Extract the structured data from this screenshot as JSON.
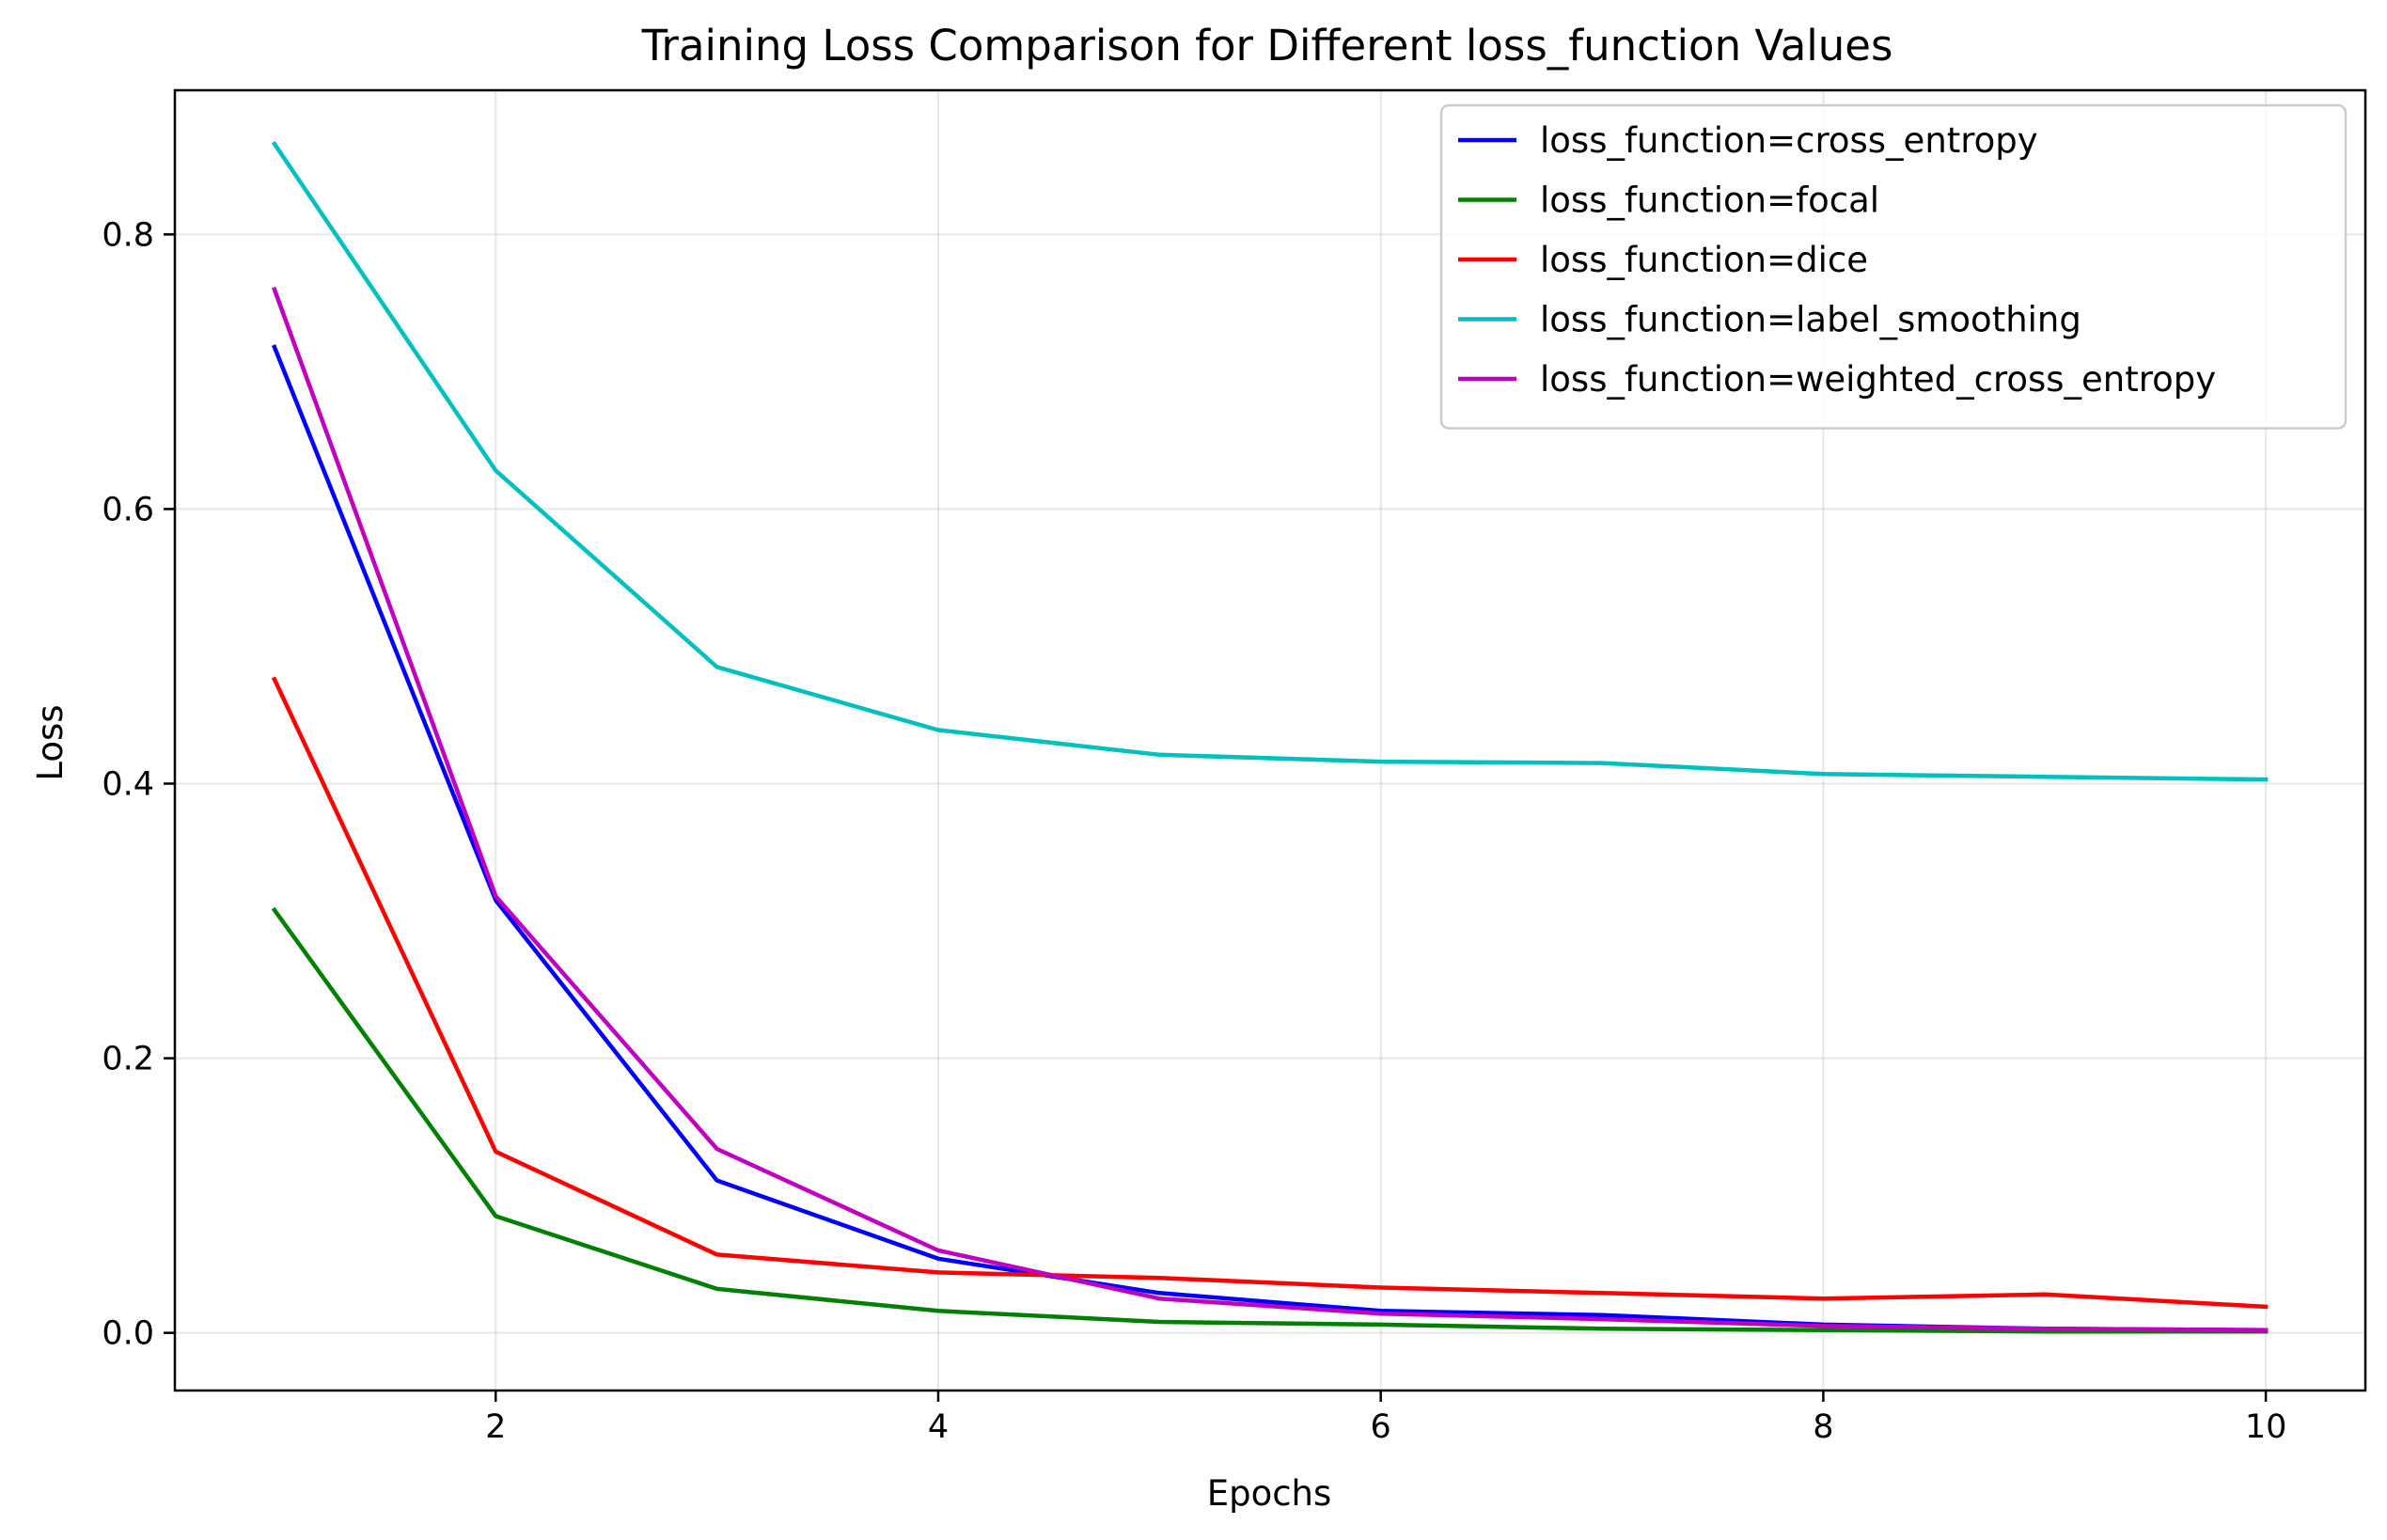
{
  "chart_data": {
    "type": "line",
    "title": "Training Loss Comparison for Different loss_function Values",
    "xlabel": "Epochs",
    "ylabel": "Loss",
    "xlim": [
      0.55,
      10.45
    ],
    "ylim": [
      -0.042,
      0.905
    ],
    "xticks": [
      2,
      4,
      6,
      8,
      10
    ],
    "yticks": [
      0.0,
      0.2,
      0.4,
      0.6,
      0.8
    ],
    "xtick_labels": [
      "2",
      "4",
      "6",
      "8",
      "10"
    ],
    "ytick_labels": [
      "0.0",
      "0.2",
      "0.4",
      "0.6",
      "0.8"
    ],
    "grid": true,
    "legend_position": "upper right",
    "x": [
      1,
      2,
      3,
      4,
      5,
      6,
      7,
      8,
      9,
      10
    ],
    "series": [
      {
        "name": "loss_function=cross_entropy",
        "color": "#0000ff",
        "values": [
          0.718,
          0.315,
          0.111,
          0.054,
          0.029,
          0.016,
          0.013,
          0.006,
          0.003,
          0.002
        ]
      },
      {
        "name": "loss_function=focal",
        "color": "#008000",
        "values": [
          0.308,
          0.085,
          0.032,
          0.016,
          0.008,
          0.006,
          0.003,
          0.002,
          0.001,
          0.001
        ]
      },
      {
        "name": "loss_function=dice",
        "color": "#ff0000",
        "values": [
          0.476,
          0.132,
          0.057,
          0.044,
          0.04,
          0.033,
          0.029,
          0.025,
          0.028,
          0.019
        ]
      },
      {
        "name": "loss_function=label_smoothing",
        "color": "#00bfbf",
        "values": [
          0.866,
          0.628,
          0.485,
          0.439,
          0.421,
          0.416,
          0.415,
          0.407,
          0.405,
          0.403
        ]
      },
      {
        "name": "loss_function=weighted_cross_entropy",
        "color": "#bf00bf",
        "values": [
          0.76,
          0.318,
          0.134,
          0.06,
          0.025,
          0.014,
          0.01,
          0.005,
          0.003,
          0.002
        ]
      }
    ]
  }
}
